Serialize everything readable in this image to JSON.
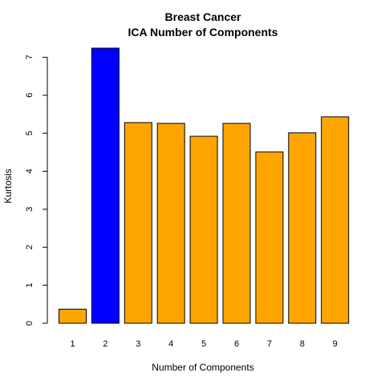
{
  "chart_data": {
    "type": "bar",
    "title": "Breast Cancer",
    "subtitle": "ICA Number of Components",
    "xlabel": "Number of Components",
    "ylabel": "Kurtosis",
    "categories": [
      "1",
      "2",
      "3",
      "4",
      "5",
      "6",
      "7",
      "8",
      "9"
    ],
    "values": [
      0.37,
      7.24,
      5.28,
      5.26,
      4.92,
      5.26,
      4.51,
      5.01,
      5.43
    ],
    "bar_colors": [
      "#FFA500",
      "#0000FF",
      "#FFA500",
      "#FFA500",
      "#FFA500",
      "#FFA500",
      "#FFA500",
      "#FFA500",
      "#FFA500"
    ],
    "highlight_color": "#0000FF",
    "default_color": "#FFA500",
    "ylim": [
      0,
      7.24
    ],
    "y_ticks": [
      0,
      1,
      2,
      3,
      4,
      5,
      6,
      7
    ],
    "grid": false,
    "legend": "none"
  }
}
